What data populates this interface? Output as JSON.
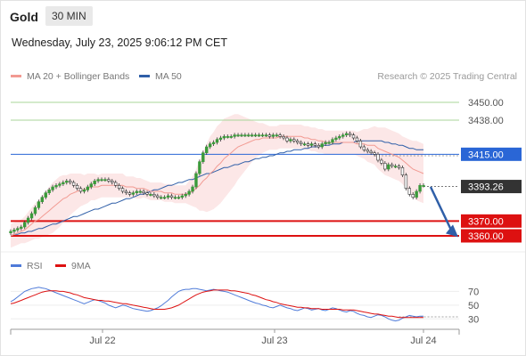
{
  "header": {
    "symbol": "Gold",
    "interval": "30 MIN",
    "datetime": "Wednesday, July 23, 2025 9:06:12 PM CET"
  },
  "legend": {
    "ma20_label": "MA 20 + Bollinger Bands",
    "ma50_label": "MA 50",
    "credit": "Research © 2025 Trading Central"
  },
  "colors": {
    "ma20": "#f29a92",
    "ma50": "#2f5fa8",
    "bands": "#fbe3e3",
    "candle": "#3a9a3a",
    "resistance": "#a8d59a",
    "pivot": "#2a66d6",
    "support": "#dd1111",
    "last": "#333333",
    "arrow": "#2f5fa8",
    "rsi": "#4f7bd9",
    "rsi_ma": "#dd1111"
  },
  "chart_data": [
    {
      "type": "candlestick",
      "levels": [
        {
          "name": "resistance-2",
          "value": 3450.0,
          "label": "3450.00"
        },
        {
          "name": "resistance-1",
          "value": 3438.0,
          "label": "3438.00"
        },
        {
          "name": "pivot",
          "value": 3415.0,
          "label": "3415.00"
        },
        {
          "name": "last-price",
          "value": 3393.26,
          "label": "3393.26"
        },
        {
          "name": "support-1",
          "value": 3370.0,
          "label": "3370.00"
        },
        {
          "name": "support-2",
          "value": 3360.0,
          "label": "3360.00"
        }
      ],
      "ylim": [
        3357,
        3462
      ],
      "x_ticks": [
        "Jul 22",
        "Jul 23",
        "Jul 24"
      ],
      "closes": [
        3363,
        3364,
        3365,
        3366,
        3369,
        3372,
        3375,
        3379,
        3383,
        3386,
        3389,
        3391,
        3393,
        3394,
        3395,
        3396,
        3397,
        3396,
        3394,
        3392,
        3390,
        3391,
        3393,
        3395,
        3397,
        3398,
        3398,
        3398,
        3397,
        3396,
        3394,
        3392,
        3390,
        3389,
        3388,
        3389,
        3390,
        3390,
        3389,
        3388,
        3388,
        3387,
        3386,
        3386,
        3386,
        3387,
        3386,
        3386,
        3386,
        3387,
        3388,
        3390,
        3393,
        3402,
        3410,
        3416,
        3420,
        3422,
        3423,
        3425,
        3426,
        3427,
        3427,
        3427,
        3428,
        3428,
        3428,
        3428,
        3428,
        3428,
        3428,
        3428,
        3428,
        3428,
        3427,
        3428,
        3428,
        3427,
        3426,
        3424,
        3425,
        3424,
        3423,
        3422,
        3422,
        3421,
        3422,
        3421,
        3420,
        3422,
        3423,
        3423,
        3425,
        3426,
        3427,
        3428,
        3429,
        3428,
        3426,
        3424,
        3420,
        3418,
        3417,
        3416,
        3415,
        3411,
        3409,
        3405,
        3408,
        3407,
        3407,
        3406,
        3401,
        3392,
        3388,
        3386,
        3390,
        3394,
        3394
      ],
      "ma20": [
        3360,
        3361,
        3362,
        3363,
        3364,
        3366,
        3368,
        3370,
        3371,
        3373,
        3375,
        3377,
        3379,
        3381,
        3383,
        3385,
        3386,
        3388,
        3389,
        3390,
        3391,
        3391,
        3392,
        3393,
        3393,
        3393,
        3394,
        3394,
        3394,
        3394,
        3394,
        3394,
        3394,
        3393,
        3393,
        3393,
        3392,
        3392,
        3392,
        3391,
        3390,
        3390,
        3390,
        3390,
        3389,
        3389,
        3389,
        3388,
        3388,
        3388,
        3388,
        3389,
        3390,
        3392,
        3394,
        3397,
        3399,
        3402,
        3404,
        3407,
        3409,
        3412,
        3414,
        3416,
        3418,
        3420,
        3421,
        3422,
        3423,
        3424,
        3425,
        3425,
        3426,
        3426,
        3426,
        3426,
        3426,
        3427,
        3427,
        3427,
        3427,
        3427,
        3427,
        3427,
        3426,
        3426,
        3425,
        3425,
        3424,
        3424,
        3423,
        3423,
        3423,
        3423,
        3423,
        3423,
        3423,
        3423,
        3423,
        3422,
        3422,
        3422,
        3421,
        3421,
        3421,
        3419,
        3418,
        3417,
        3416,
        3415,
        3414,
        3413,
        3411,
        3409,
        3407,
        3405,
        3404,
        3403,
        3402
      ],
      "ma50": [
        3360,
        3361,
        3361,
        3362,
        3362,
        3363,
        3363,
        3364,
        3365,
        3365,
        3366,
        3367,
        3368,
        3368,
        3369,
        3370,
        3371,
        3372,
        3373,
        3373,
        3374,
        3375,
        3376,
        3377,
        3378,
        3378,
        3379,
        3380,
        3381,
        3382,
        3382,
        3383,
        3384,
        3385,
        3385,
        3386,
        3387,
        3388,
        3388,
        3389,
        3390,
        3391,
        3391,
        3392,
        3393,
        3394,
        3394,
        3395,
        3396,
        3396,
        3397,
        3398,
        3398,
        3399,
        3400,
        3401,
        3402,
        3402,
        3403,
        3404,
        3405,
        3406,
        3406,
        3407,
        3408,
        3408,
        3409,
        3410,
        3410,
        3411,
        3412,
        3412,
        3413,
        3413,
        3414,
        3414,
        3415,
        3416,
        3416,
        3417,
        3417,
        3418,
        3418,
        3418,
        3419,
        3419,
        3420,
        3420,
        3420,
        3421,
        3421,
        3421,
        3422,
        3422,
        3422,
        3423,
        3423,
        3423,
        3423,
        3424,
        3424,
        3424,
        3424,
        3424,
        3424,
        3424,
        3424,
        3423,
        3423,
        3422,
        3422,
        3421,
        3421,
        3420,
        3419,
        3419,
        3418,
        3418,
        3418
      ],
      "band_width": [
        8,
        8,
        8,
        8,
        9,
        10,
        11,
        12,
        13,
        14,
        15,
        16,
        17,
        17,
        17,
        16,
        15,
        14,
        13,
        12,
        11,
        10,
        10,
        9,
        9,
        8,
        8,
        8,
        8,
        8,
        8,
        8,
        8,
        7,
        7,
        7,
        7,
        7,
        6,
        6,
        6,
        6,
        6,
        6,
        6,
        6,
        6,
        6,
        6,
        6,
        6,
        8,
        10,
        13,
        17,
        20,
        23,
        25,
        26,
        27,
        27,
        27,
        26,
        25,
        24,
        22,
        20,
        18,
        16,
        14,
        12,
        11,
        10,
        9,
        8,
        8,
        8,
        8,
        8,
        8,
        8,
        8,
        8,
        8,
        8,
        8,
        8,
        8,
        8,
        8,
        8,
        8,
        8,
        8,
        8,
        8,
        8,
        8,
        8,
        8,
        9,
        10,
        11,
        12,
        13,
        14,
        15,
        16,
        16,
        16,
        16,
        16,
        16,
        17,
        18,
        19,
        20,
        20,
        20
      ]
    },
    {
      "type": "line",
      "title": "RSI",
      "legend": [
        "RSI",
        "9MA"
      ],
      "y_ticks": [
        70,
        50,
        30
      ],
      "ylim": [
        20,
        90
      ],
      "rsi": [
        55,
        58,
        62,
        66,
        70,
        72,
        74,
        75,
        76,
        75,
        74,
        72,
        70,
        68,
        66,
        64,
        62,
        60,
        58,
        56,
        54,
        52,
        54,
        56,
        58,
        57,
        55,
        53,
        50,
        48,
        46,
        48,
        50,
        49,
        47,
        45,
        44,
        43,
        42,
        41,
        42,
        44,
        46,
        49,
        53,
        57,
        62,
        66,
        70,
        72,
        73,
        73,
        74,
        74,
        73,
        72,
        71,
        72,
        73,
        72,
        71,
        70,
        69,
        67,
        65,
        63,
        61,
        59,
        57,
        55,
        53,
        52,
        50,
        49,
        47,
        46,
        48,
        50,
        48,
        46,
        45,
        43,
        42,
        44,
        46,
        45,
        43,
        44,
        45,
        43,
        42,
        44,
        46,
        45,
        43,
        41,
        40,
        42,
        41,
        38,
        36,
        35,
        33,
        32,
        34,
        36,
        35,
        33,
        30,
        28,
        27,
        28,
        31,
        33,
        35,
        34,
        33,
        34,
        34
      ],
      "rsi_9ma": [
        52,
        53,
        55,
        57,
        59,
        61,
        63,
        65,
        67,
        69,
        70,
        71,
        71,
        71,
        70,
        70,
        69,
        68,
        66,
        65,
        63,
        61,
        60,
        59,
        58,
        57,
        57,
        56,
        56,
        55,
        54,
        53,
        52,
        52,
        51,
        50,
        49,
        48,
        47,
        46,
        45,
        44,
        44,
        44,
        44,
        45,
        46,
        48,
        50,
        53,
        56,
        59,
        62,
        65,
        67,
        69,
        70,
        71,
        72,
        72,
        72,
        72,
        72,
        71,
        71,
        70,
        69,
        68,
        67,
        65,
        64,
        62,
        60,
        58,
        57,
        55,
        54,
        52,
        51,
        50,
        49,
        48,
        47,
        47,
        46,
        46,
        45,
        45,
        45,
        44,
        44,
        44,
        44,
        44,
        44,
        43,
        43,
        43,
        43,
        42,
        41,
        40,
        39,
        38,
        37,
        37,
        36,
        35,
        34,
        34,
        33,
        32,
        32,
        32,
        32,
        32,
        32,
        32,
        32
      ],
      "dashed_level": 33
    }
  ]
}
